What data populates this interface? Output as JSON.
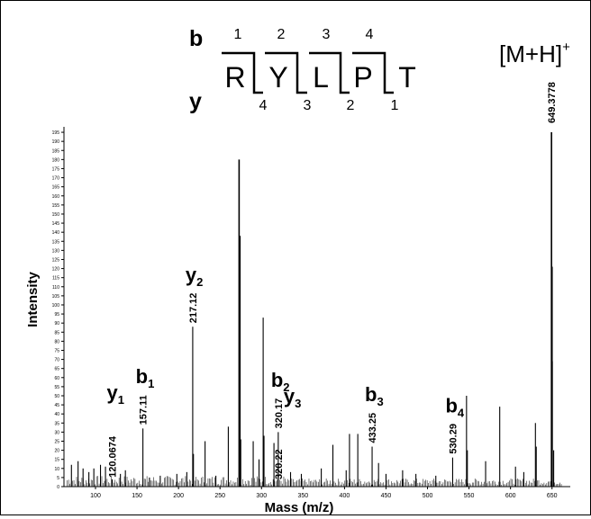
{
  "chart_data": {
    "type": "bar",
    "xlabel": "Mass (m/z)",
    "ylabel": "Intensity",
    "xlim": [
      62,
      672
    ],
    "ylim": [
      0,
      198
    ],
    "x_ticks": [
      100,
      150,
      200,
      250,
      300,
      350,
      400,
      450,
      500,
      550,
      600,
      650
    ],
    "y_ticks": [
      0,
      5,
      10,
      15,
      20,
      25,
      30,
      35,
      40,
      45,
      50,
      55,
      60,
      65,
      70,
      75,
      80,
      85,
      90,
      95,
      100,
      105,
      110,
      115,
      120,
      125,
      130,
      135,
      140,
      145,
      150,
      155,
      160,
      165,
      170,
      175,
      180,
      185,
      190,
      195
    ],
    "peaks": [
      {
        "x": 71,
        "y": 12
      },
      {
        "x": 79,
        "y": 14
      },
      {
        "x": 85,
        "y": 10
      },
      {
        "x": 92,
        "y": 8
      },
      {
        "x": 98,
        "y": 10
      },
      {
        "x": 106,
        "y": 12
      },
      {
        "x": 112,
        "y": 11
      },
      {
        "x": 120.0674,
        "y": 4
      },
      {
        "x": 130,
        "y": 7
      },
      {
        "x": 136,
        "y": 9
      },
      {
        "x": 157.11,
        "y": 32
      },
      {
        "x": 165,
        "y": 5
      },
      {
        "x": 178,
        "y": 6
      },
      {
        "x": 198,
        "y": 7
      },
      {
        "x": 210,
        "y": 8
      },
      {
        "x": 217.12,
        "y": 88
      },
      {
        "x": 218,
        "y": 18
      },
      {
        "x": 232,
        "y": 25
      },
      {
        "x": 245,
        "y": 6
      },
      {
        "x": 260,
        "y": 33
      },
      {
        "x": 273,
        "y": 180
      },
      {
        "x": 274,
        "y": 138
      },
      {
        "x": 275,
        "y": 26
      },
      {
        "x": 290,
        "y": 25
      },
      {
        "x": 297,
        "y": 15
      },
      {
        "x": 302,
        "y": 93
      },
      {
        "x": 303,
        "y": 28
      },
      {
        "x": 315,
        "y": 24
      },
      {
        "x": 320.17,
        "y": 30
      },
      {
        "x": 320.22,
        "y": 12
      },
      {
        "x": 335,
        "y": 8
      },
      {
        "x": 348,
        "y": 7
      },
      {
        "x": 372,
        "y": 10
      },
      {
        "x": 386,
        "y": 23
      },
      {
        "x": 402,
        "y": 9
      },
      {
        "x": 406,
        "y": 29
      },
      {
        "x": 416,
        "y": 29
      },
      {
        "x": 433.25,
        "y": 22
      },
      {
        "x": 441,
        "y": 13
      },
      {
        "x": 450,
        "y": 7
      },
      {
        "x": 470,
        "y": 9
      },
      {
        "x": 486,
        "y": 7
      },
      {
        "x": 510,
        "y": 6
      },
      {
        "x": 530.29,
        "y": 16
      },
      {
        "x": 547,
        "y": 50
      },
      {
        "x": 548,
        "y": 20
      },
      {
        "x": 570,
        "y": 14
      },
      {
        "x": 587,
        "y": 44
      },
      {
        "x": 606,
        "y": 11
      },
      {
        "x": 616,
        "y": 8
      },
      {
        "x": 630,
        "y": 35
      },
      {
        "x": 631,
        "y": 22
      },
      {
        "x": 649.3778,
        "y": 195
      },
      {
        "x": 650,
        "y": 121
      },
      {
        "x": 650.4,
        "y": 69
      },
      {
        "x": 652,
        "y": 20
      }
    ],
    "annotations": [
      {
        "ion": "y",
        "sub": "1",
        "mz": "120.0674",
        "x": 120.0674,
        "peak_y": 4
      },
      {
        "ion": "b",
        "sub": "1",
        "mz": "157.11",
        "x": 157.11,
        "peak_y": 32
      },
      {
        "ion": "y",
        "sub": "2",
        "mz": "217.12",
        "x": 217.12,
        "peak_y": 88
      },
      {
        "ion": "b",
        "sub": "2",
        "mz": "320.17",
        "x": 320.17,
        "peak_y": 30
      },
      {
        "ion": "y",
        "sub": "3",
        "mz": "320.22",
        "x": 320.22,
        "peak_y": 12
      },
      {
        "ion": "b",
        "sub": "3",
        "mz": "433.25",
        "x": 433.25,
        "peak_y": 22
      },
      {
        "ion": "b",
        "sub": "4",
        "mz": "530.29",
        "x": 530.29,
        "peak_y": 16
      },
      {
        "ion": "",
        "sub": "",
        "mz": "649.3778",
        "x": 649.3778,
        "peak_y": 195
      }
    ],
    "precursor_label": "[M+H]",
    "precursor_charge": "+"
  },
  "sequence": {
    "b_label": "b",
    "y_label": "y",
    "residues": [
      "R",
      "Y",
      "L",
      "P",
      "T"
    ],
    "b_numbers": [
      "1",
      "2",
      "3",
      "4"
    ],
    "y_numbers": [
      "4",
      "3",
      "2",
      "1"
    ]
  }
}
